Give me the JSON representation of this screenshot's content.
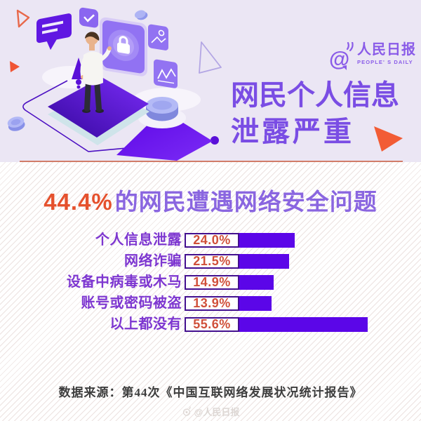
{
  "brand": {
    "name_cn": "人民日报",
    "name_en": "PEOPLE' S DAILY"
  },
  "hero": {
    "title_line1": "网民个人信息",
    "title_line2": "泄露严重"
  },
  "headline": {
    "stat": "44.4%",
    "rest": "的网民遭遇网络安全问题"
  },
  "chart_data": {
    "type": "bar",
    "orientation": "horizontal",
    "title": "44.4%的网民遭遇网络安全问题",
    "categories": [
      "个人信息泄露",
      "网络诈骗",
      "设备中病毒或木马",
      "账号或密码被盗",
      "以上都没有"
    ],
    "values": [
      24.0,
      21.5,
      14.9,
      13.9,
      55.6
    ],
    "value_labels": [
      "24.0%",
      "21.5%",
      "14.9%",
      "13.9%",
      "55.6%"
    ],
    "unit": "%",
    "xlim": [
      0,
      60
    ],
    "grid": false,
    "legend": false,
    "bar_color": "#5b06e8",
    "value_text_color": "#d0503a",
    "category_color": "#7d36d0"
  },
  "source_line": "数据来源：第44次《中国互联网络发展状况统计报告》",
  "watermark": "@人民日报",
  "colors": {
    "hero_bg": "#ebe6f4",
    "title_purple": "#7a4de4",
    "logo_purple": "#8a5ce8",
    "headline_purple": "#8a66e0",
    "stat_orange": "#e5512d",
    "accent_orange": "#f05535",
    "divider": "#cc6950",
    "platform_dark": "#36089e",
    "platform_bright": "#7a2cf8"
  }
}
